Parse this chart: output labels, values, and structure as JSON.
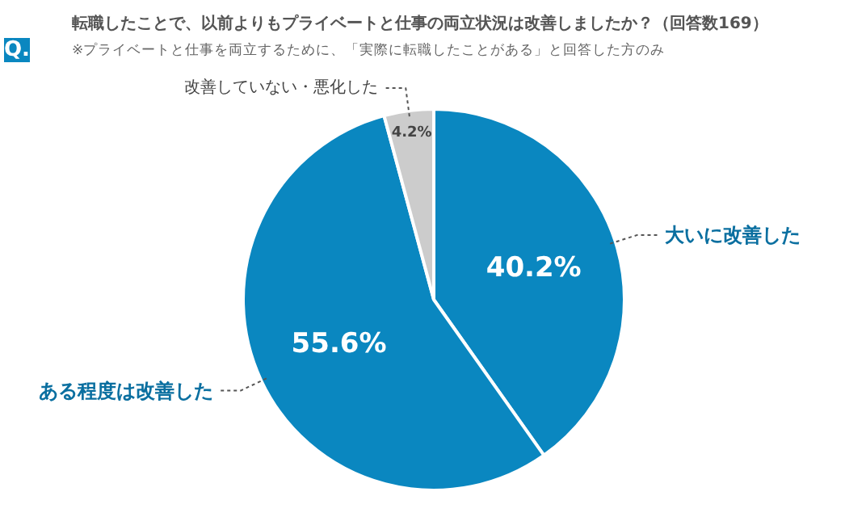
{
  "chart_data": {
    "type": "pie",
    "title": "転職したことで、以前よりもプライベートと仕事の両立状況は改善しましたか？（回答数169）",
    "subtitle": "※プライベートと仕事を両立するために、「実際に転職したことがある」と回答した方のみ",
    "annotations": [
      "Q."
    ],
    "categories": [
      "大いに改善した",
      "ある程度は改善した",
      "改善していない・悪化した"
    ],
    "values": [
      40.2,
      55.6,
      4.2
    ],
    "colors": [
      "#0a87c0",
      "#0a87c0",
      "#cccccc"
    ],
    "value_labels": [
      "40.2%",
      "55.6%",
      "4.2%"
    ]
  }
}
